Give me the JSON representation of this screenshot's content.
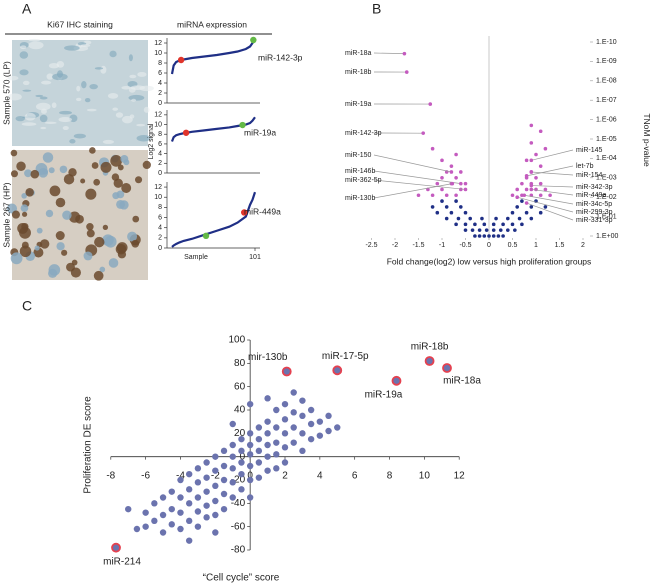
{
  "figure": {
    "panel_labels": [
      "A",
      "B",
      "C"
    ],
    "ihc_header": "Ki67 IHC staining",
    "expression_header": "miRNA expression",
    "samples": [
      {
        "text": "Sample 570 (LP)",
        "color": "#e0342b"
      },
      {
        "text": "Sample 267 (HP)",
        "color": "#63b946"
      }
    ]
  },
  "chart_data": [
    {
      "type": "line",
      "xlim": [
        1,
        101
      ],
      "ylim": [
        0,
        13
      ],
      "yticks": [
        0,
        2,
        4,
        6,
        8,
        10,
        12
      ],
      "x": [
        1,
        3,
        6,
        10,
        15,
        25,
        40,
        55,
        70,
        80,
        90,
        95,
        98,
        101
      ],
      "series": [
        {
          "color": "#1f2f86",
          "values": [
            5.8,
            7.5,
            8.2,
            8.5,
            8.7,
            9,
            9.3,
            9.6,
            10,
            10.3,
            10.8,
            11.3,
            12,
            12.8
          ]
        }
      ],
      "points": [
        {
          "x": 12,
          "y": 8.6,
          "color": "#e0342b"
        },
        {
          "x": 99,
          "y": 12.6,
          "color": "#63b946"
        }
      ],
      "annotation": "miR-142-3p"
    },
    {
      "type": "line",
      "xlim": [
        1,
        101
      ],
      "ylim": [
        0,
        13
      ],
      "yticks": [
        0,
        2,
        4,
        6,
        8,
        10,
        12
      ],
      "ylabel": "Log2 signal",
      "x": [
        1,
        3,
        6,
        10,
        15,
        25,
        40,
        55,
        70,
        80,
        90,
        95,
        98,
        101
      ],
      "series": [
        {
          "color": "#1f2f86",
          "values": [
            6.5,
            7.4,
            7.8,
            8,
            8.2,
            8.5,
            8.8,
            9.1,
            9.4,
            9.7,
            10,
            10.3,
            10.8,
            11.5
          ]
        }
      ],
      "points": [
        {
          "x": 18,
          "y": 8.3,
          "color": "#e0342b"
        },
        {
          "x": 86,
          "y": 9.9,
          "color": "#63b946"
        }
      ],
      "annotation": "miR-19a"
    },
    {
      "type": "line",
      "xlim": [
        1,
        101
      ],
      "ylim": [
        0,
        13
      ],
      "yticks": [
        0,
        2,
        4,
        6,
        8,
        10,
        12
      ],
      "xticks": [
        101
      ],
      "xlabel": "Sample",
      "x": [
        1,
        3,
        6,
        10,
        15,
        25,
        40,
        55,
        70,
        80,
        90,
        95,
        98,
        101
      ],
      "series": [
        {
          "color": "#1f2f86",
          "values": [
            0.2,
            0.5,
            0.8,
            1.1,
            1.4,
            1.8,
            2.6,
            3.4,
            4.2,
            5,
            6.2,
            8.5,
            9.5,
            11
          ]
        }
      ],
      "points": [
        {
          "x": 88,
          "y": 7,
          "color": "#e0342b"
        },
        {
          "x": 42,
          "y": 2.4,
          "color": "#63b946"
        }
      ],
      "annotation": "miR-449a"
    },
    {
      "type": "scatter",
      "y_axis_side": "right",
      "xlabel": "Fold change(log2) low versus high proliferation groups",
      "ylabel": "TNoM p-value",
      "xlim": [
        -2.5,
        2
      ],
      "xticks": [
        -2.5,
        -2,
        -1.5,
        -1,
        -0.5,
        0,
        0.5,
        1,
        1.5,
        2
      ],
      "ylim": [
        0,
        10
      ],
      "yticks": [
        {
          "value": 0,
          "label": "1.E+00"
        },
        {
          "value": 1,
          "label": "1.E-01"
        },
        {
          "value": 2,
          "label": "1.E-02"
        },
        {
          "value": 3,
          "label": "1.E-03"
        },
        {
          "value": 4,
          "label": "1.E-04"
        },
        {
          "value": 5,
          "label": "1.E-05"
        },
        {
          "value": 6,
          "label": "1.E-06"
        },
        {
          "value": 7,
          "label": "1.E-07"
        },
        {
          "value": 8,
          "label": "1.E-08"
        },
        {
          "value": 9,
          "label": "1.E-09"
        },
        {
          "value": 10,
          "label": "1.E-10"
        }
      ],
      "series": [
        {
          "color": "#1f2f86",
          "x": [
            -0.3,
            -0.2,
            -0.1,
            0,
            0.1,
            0.2,
            0.3,
            -0.5,
            -0.35,
            -0.2,
            -0.05,
            0.1,
            0.25,
            0.4,
            0.55,
            -0.7,
            -0.5,
            -0.3,
            -0.1,
            0.1,
            0.3,
            0.5,
            0.7,
            -0.9,
            -0.65,
            -0.4,
            -0.15,
            0.15,
            0.4,
            0.65,
            0.9,
            -1.1,
            -0.8,
            -0.5,
            0.5,
            0.8,
            1.1,
            -1.2,
            -0.9,
            -0.6,
            0.6,
            0.9,
            1.2,
            -1,
            -0.7,
            0.7,
            1
          ],
          "values": [
            0,
            0,
            0,
            0,
            0,
            0,
            0,
            0.3,
            0.3,
            0.3,
            0.3,
            0.3,
            0.3,
            0.3,
            0.3,
            0.6,
            0.6,
            0.6,
            0.6,
            0.6,
            0.6,
            0.6,
            0.6,
            0.9,
            0.9,
            0.9,
            0.9,
            0.9,
            0.9,
            0.9,
            0.9,
            1.2,
            1.2,
            1.2,
            1.2,
            1.2,
            1.2,
            1.5,
            1.5,
            1.5,
            1.5,
            1.5,
            1.5,
            1.8,
            1.8,
            1.8,
            1.8
          ]
        },
        {
          "color": "#c45bbf",
          "x": [
            -1.5,
            -1.2,
            -0.9,
            -0.7,
            -1.3,
            -1,
            -0.6,
            -1.1,
            -0.8,
            -0.5,
            -1,
            -0.7,
            -0.9,
            -0.6,
            -0.8,
            -1,
            -0.7,
            -1.2,
            0.5,
            0.7,
            0.9,
            1.1,
            1.3,
            0.6,
            0.8,
            1,
            1.2,
            0.7,
            0.9,
            1.1,
            0.8,
            1,
            0.9,
            1.1,
            0.8,
            1,
            1.2,
            0.9,
            1.1,
            0.9
          ],
          "values": [
            2.1,
            2.1,
            2.1,
            2.1,
            2.4,
            2.4,
            2.4,
            2.7,
            2.7,
            2.7,
            3,
            3,
            3.3,
            3.3,
            3.6,
            3.9,
            4.2,
            4.5,
            2.1,
            2.1,
            2.1,
            2.1,
            2.1,
            2.4,
            2.4,
            2.4,
            2.4,
            2.7,
            2.7,
            2.7,
            3,
            3,
            3.3,
            3.6,
            3.9,
            4.2,
            4.5,
            4.8,
            5.4,
            5.7
          ]
        }
      ],
      "annotations": [
        {
          "text": "miR-18a",
          "x": -1.8,
          "y": 9.4
        },
        {
          "text": "miR-18b",
          "x": -1.75,
          "y": 8.45
        },
        {
          "text": "miR-19a",
          "x": -1.25,
          "y": 6.8
        },
        {
          "text": "miR-142-3p",
          "x": -1.4,
          "y": 5.3
        },
        {
          "text": "miR-150",
          "x": -0.8,
          "y": 3.3
        },
        {
          "text": "miR-146b",
          "x": -0.6,
          "y": 2.7
        },
        {
          "text": "miR-362-5p",
          "x": -0.5,
          "y": 2.4
        },
        {
          "text": "miR-130b",
          "x": -0.78,
          "y": 2.7
        },
        {
          "text": "miR-145",
          "x": 0.9,
          "y": 3.9
        },
        {
          "text": "let-7b",
          "x": 0.8,
          "y": 3.1
        },
        {
          "text": "miR-154",
          "x": 0.9,
          "y": 3.3
        },
        {
          "text": "miR-342-3p",
          "x": 0.9,
          "y": 2.6
        },
        {
          "text": "miR-449a",
          "x": 0.9,
          "y": 2.4
        },
        {
          "text": "miR-34c-5p",
          "x": 0.75,
          "y": 2.1
        },
        {
          "text": "miR-299-3p",
          "x": 0.6,
          "y": 2
        },
        {
          "text": "miR-331-3p",
          "x": 0.8,
          "y": 1.7
        }
      ]
    },
    {
      "type": "scatter",
      "axes": "origin",
      "xlabel": "“Cell cycle” score",
      "ylabel": "Proliferation DE score",
      "xlim": [
        -8,
        12
      ],
      "xticks": [
        -8,
        -6,
        -4,
        -2,
        0,
        2,
        4,
        6,
        8,
        10,
        12
      ],
      "ylim": [
        -80,
        100
      ],
      "yticks": [
        -80,
        -60,
        -40,
        -20,
        0,
        20,
        40,
        60,
        80,
        100
      ],
      "series": [
        {
          "color": "#6b73ae",
          "x": [
            -6,
            -6,
            -5.5,
            -5.5,
            -5,
            -5,
            -5,
            -4.5,
            -4.5,
            -4.5,
            -4,
            -4,
            -4,
            -4,
            -3.5,
            -3.5,
            -3.5,
            -3.5,
            -3,
            -3,
            -3,
            -3,
            -3,
            -2.5,
            -2.5,
            -2.5,
            -2.5,
            -2.5,
            -2,
            -2,
            -2,
            -2,
            -2,
            -1.5,
            -1.5,
            -1.5,
            -1.5,
            -1.5,
            -1,
            -1,
            -1,
            -1,
            -1,
            -0.5,
            -0.5,
            -0.5,
            -0.5,
            -0.5,
            0,
            0,
            0,
            0,
            0,
            0,
            0.5,
            0.5,
            0.5,
            0.5,
            0.5,
            1,
            1,
            1,
            1,
            1,
            1.5,
            1.5,
            1.5,
            1.5,
            1.5,
            2,
            2,
            2,
            2,
            2,
            2.5,
            2.5,
            2.5,
            2.5,
            3,
            3,
            3,
            3,
            3.5,
            3.5,
            3.5,
            4,
            4,
            4.5,
            4.5,
            5,
            -7,
            -6.5,
            0,
            -1,
            1,
            -3.5,
            -2
          ],
          "values": [
            -48,
            -60,
            -55,
            -40,
            -35,
            -50,
            -65,
            -30,
            -45,
            -58,
            -20,
            -35,
            -48,
            -62,
            -15,
            -28,
            -40,
            -55,
            -10,
            -22,
            -35,
            -47,
            -60,
            -5,
            -18,
            -30,
            -42,
            -52,
            0,
            -12,
            -25,
            -38,
            -50,
            5,
            -8,
            -20,
            -32,
            -45,
            10,
            0,
            -10,
            -22,
            -35,
            15,
            5,
            -5,
            -15,
            -28,
            20,
            10,
            2,
            -8,
            -20,
            -35,
            25,
            15,
            5,
            -5,
            -18,
            30,
            20,
            10,
            0,
            -12,
            40,
            25,
            12,
            2,
            -10,
            45,
            32,
            20,
            8,
            -5,
            55,
            38,
            25,
            12,
            48,
            35,
            20,
            5,
            40,
            28,
            15,
            30,
            18,
            35,
            22,
            25,
            -45,
            -62,
            45,
            28,
            50,
            -72,
            -65
          ]
        }
      ],
      "highlight_color": "#e5414f",
      "annotations": [
        {
          "text": "mir-130b",
          "x": 2.1,
          "y": 73
        },
        {
          "text": "miR-17-5p",
          "x": 5,
          "y": 74
        },
        {
          "text": "miR-19a",
          "x": 8.4,
          "y": 65
        },
        {
          "text": "miR-18b",
          "x": 10.3,
          "y": 82
        },
        {
          "text": "miR-18a",
          "x": 11.3,
          "y": 76
        },
        {
          "text": "miR-214",
          "x": -7.7,
          "y": -78
        }
      ]
    }
  ]
}
